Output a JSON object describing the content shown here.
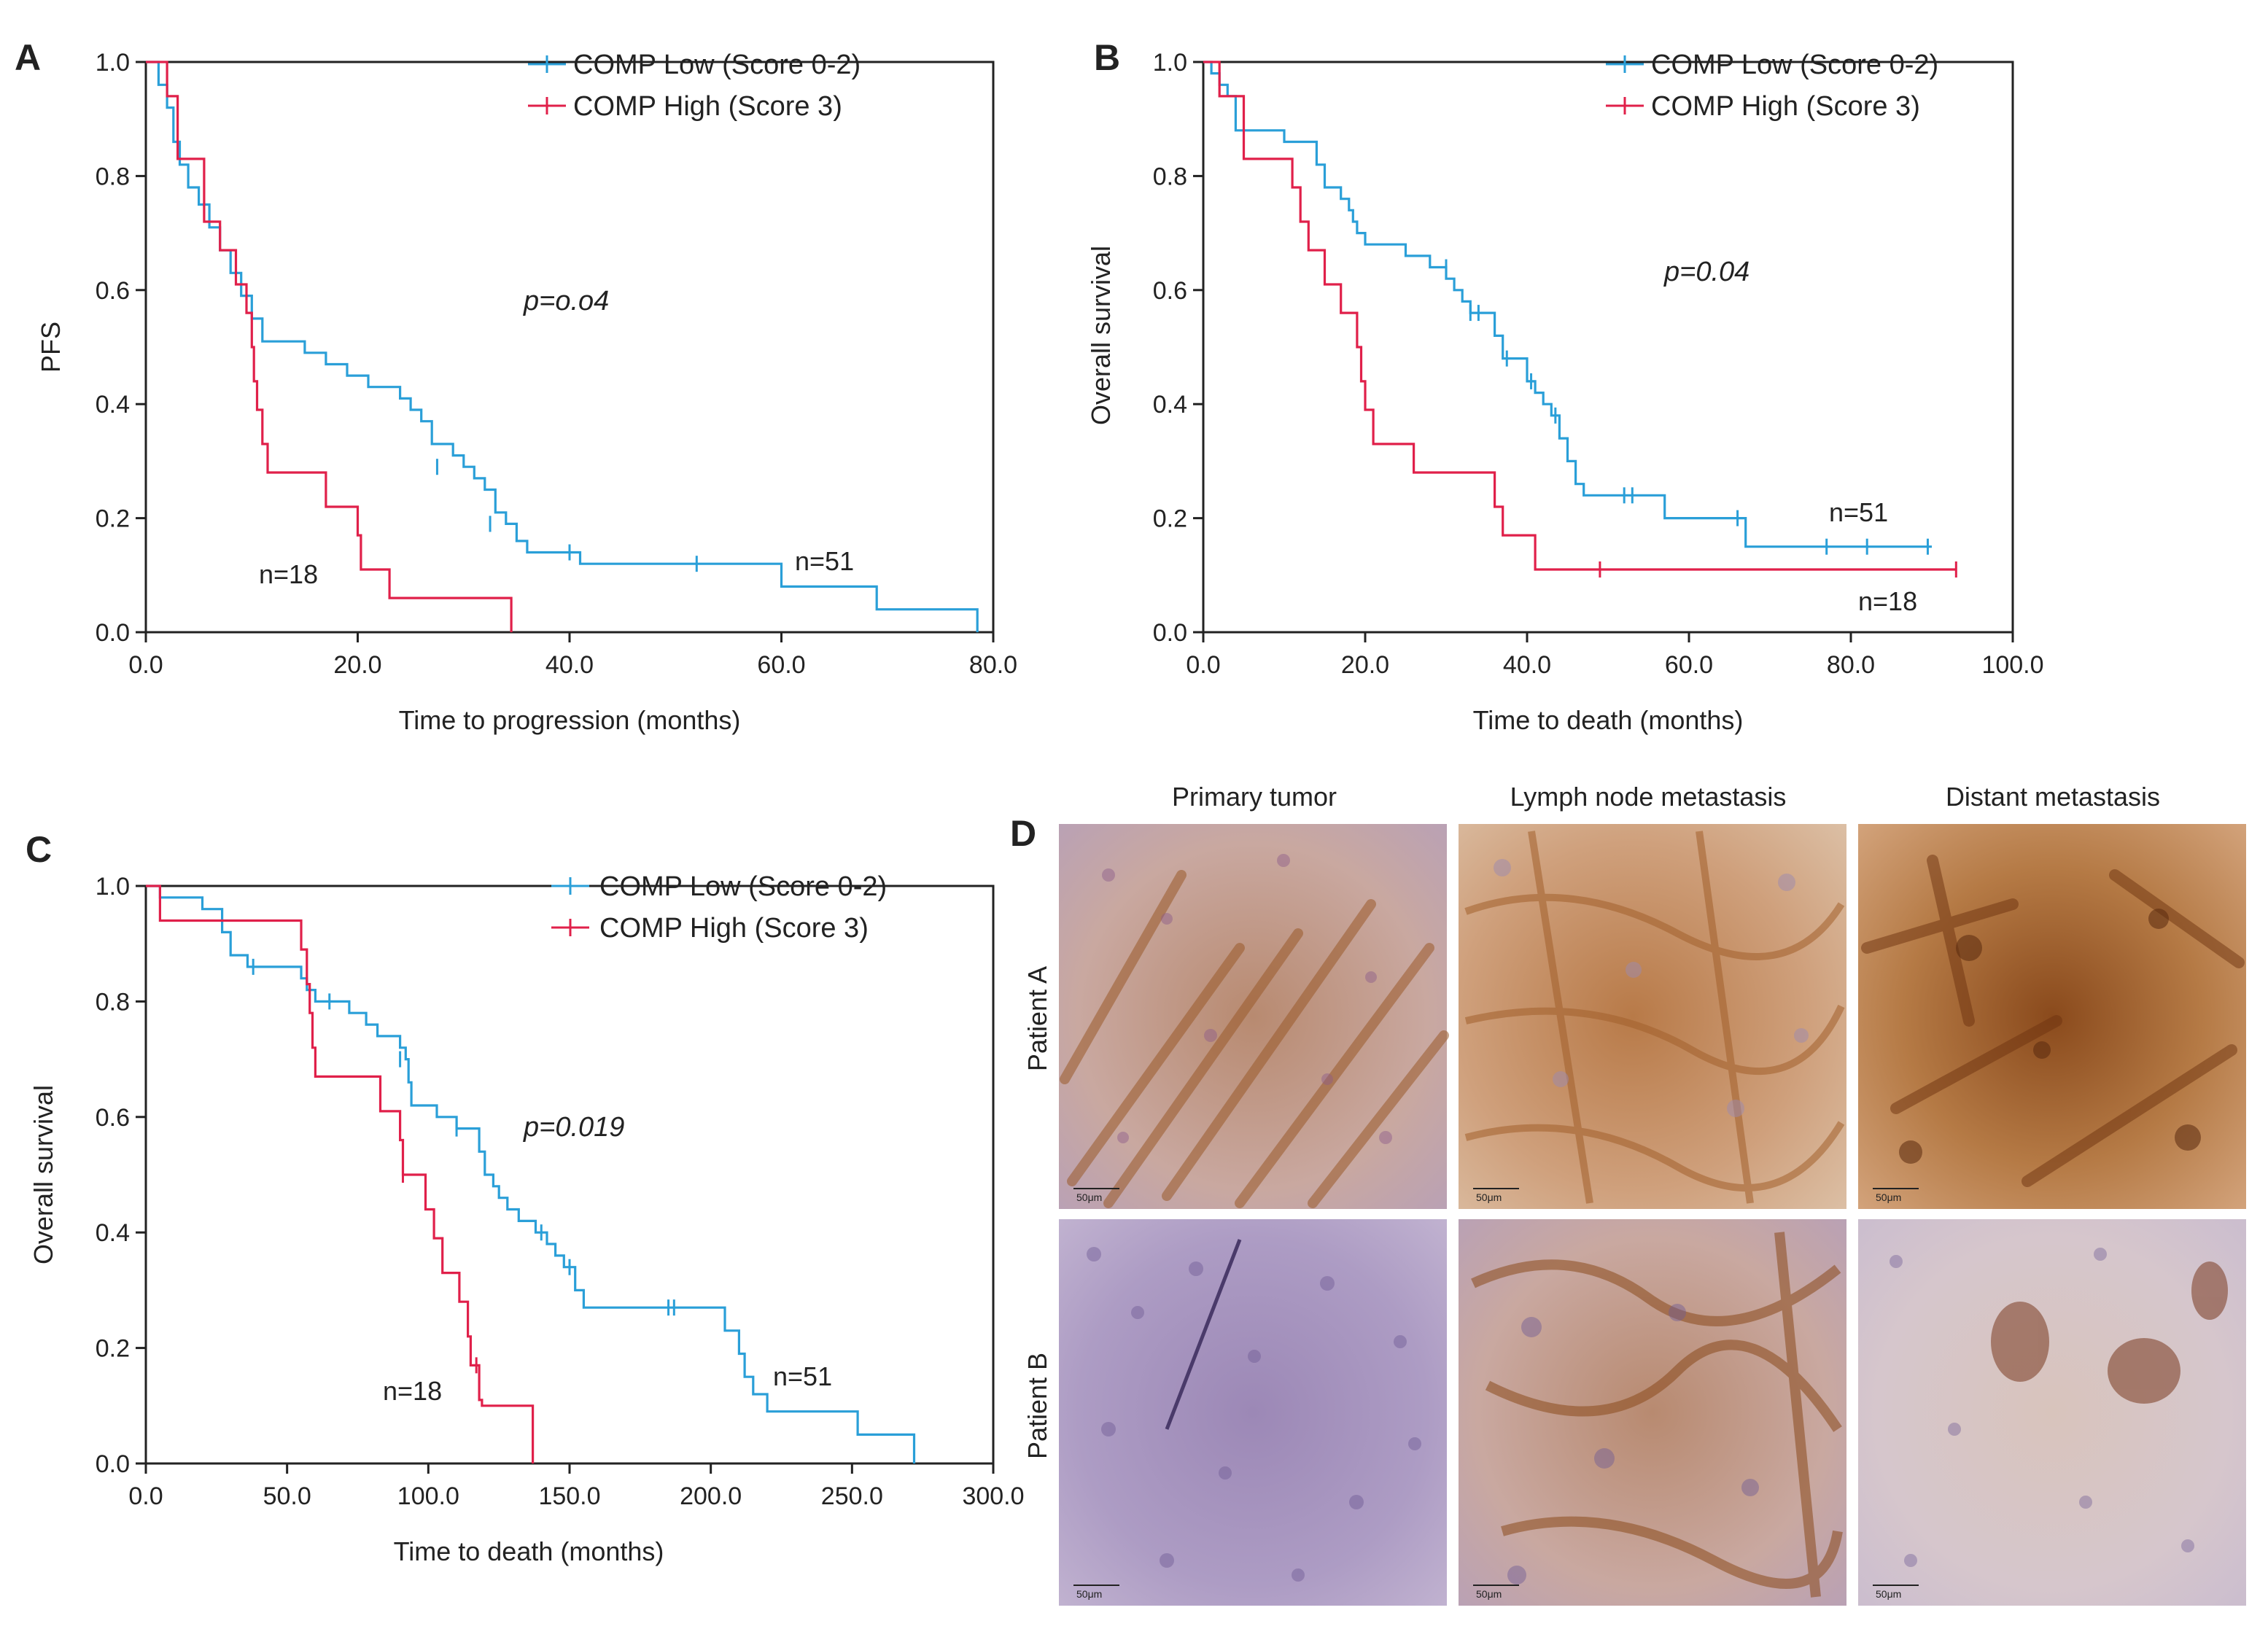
{
  "colors": {
    "low": "#2a9fd8",
    "high": "#e0204a",
    "axis": "#222222"
  },
  "chart_data": [
    {
      "panel": "A",
      "type": "line",
      "subtype": "kaplan-meier",
      "xlabel": "Time to progression  (months)",
      "ylabel": "PFS",
      "xlim": [
        0,
        80
      ],
      "ylim": [
        0,
        1
      ],
      "xticks": [
        "0.0",
        "20.0",
        "40.0",
        "60.0",
        "80.0"
      ],
      "yticks": [
        "0.0",
        "0.2",
        "0.4",
        "0.6",
        "0.8",
        "1.0"
      ],
      "pvalue": "p=o.o4",
      "series": [
        {
          "name": "COMP Low (Score 0-2)",
          "key": "low",
          "n_label": "n=51",
          "points": [
            [
              0,
              1.0
            ],
            [
              1.2,
              0.96
            ],
            [
              2.0,
              0.92
            ],
            [
              2.6,
              0.86
            ],
            [
              3.2,
              0.82
            ],
            [
              4.0,
              0.78
            ],
            [
              5.0,
              0.75
            ],
            [
              6.0,
              0.71
            ],
            [
              7.0,
              0.67
            ],
            [
              8.0,
              0.63
            ],
            [
              9.0,
              0.59
            ],
            [
              10.0,
              0.55
            ],
            [
              11.0,
              0.51
            ],
            [
              15.0,
              0.49
            ],
            [
              17.0,
              0.47
            ],
            [
              19.0,
              0.45
            ],
            [
              21.0,
              0.43
            ],
            [
              24.0,
              0.41
            ],
            [
              25.0,
              0.39
            ],
            [
              26.0,
              0.37
            ],
            [
              27.0,
              0.33
            ],
            [
              29.0,
              0.31
            ],
            [
              30.0,
              0.29
            ],
            [
              31.0,
              0.27
            ],
            [
              32.0,
              0.25
            ],
            [
              33.0,
              0.21
            ],
            [
              34.0,
              0.19
            ],
            [
              35.0,
              0.16
            ],
            [
              36.0,
              0.14
            ],
            [
              41.0,
              0.12
            ],
            [
              60.0,
              0.08
            ],
            [
              69.0,
              0.04
            ],
            [
              78.5,
              0.0
            ]
          ],
          "censors": [
            [
              27.5,
              0.29
            ],
            [
              32.5,
              0.19
            ],
            [
              40.0,
              0.14
            ],
            [
              52.0,
              0.12
            ]
          ]
        },
        {
          "name": "COMP High (Score 3)",
          "key": "high",
          "n_label": "n=18",
          "points": [
            [
              0,
              1.0
            ],
            [
              2.0,
              0.94
            ],
            [
              3.0,
              0.83
            ],
            [
              5.5,
              0.72
            ],
            [
              7.0,
              0.67
            ],
            [
              8.5,
              0.61
            ],
            [
              9.5,
              0.56
            ],
            [
              10.0,
              0.5
            ],
            [
              10.2,
              0.44
            ],
            [
              10.5,
              0.39
            ],
            [
              11.0,
              0.33
            ],
            [
              11.5,
              0.28
            ],
            [
              17.0,
              0.22
            ],
            [
              20.0,
              0.17
            ],
            [
              20.3,
              0.11
            ],
            [
              23.0,
              0.06
            ],
            [
              34.5,
              0.0
            ]
          ],
          "censors": []
        }
      ]
    },
    {
      "panel": "B",
      "type": "line",
      "subtype": "kaplan-meier",
      "xlabel": "Time to death (months)",
      "ylabel": "Overall survival",
      "xlim": [
        0,
        100
      ],
      "ylim": [
        0,
        1
      ],
      "xticks": [
        "0.0",
        "20.0",
        "40.0",
        "60.0",
        "80.0",
        "100.0"
      ],
      "yticks": [
        "0.0",
        "0.2",
        "0.4",
        "0.6",
        "0.8",
        "1.0"
      ],
      "pvalue": "p=0.04",
      "series": [
        {
          "name": "COMP Low (Score 0-2)",
          "key": "low",
          "n_label": "n=51",
          "points": [
            [
              0,
              1.0
            ],
            [
              1,
              0.98
            ],
            [
              2,
              0.96
            ],
            [
              3,
              0.94
            ],
            [
              4,
              0.88
            ],
            [
              10,
              0.86
            ],
            [
              14,
              0.82
            ],
            [
              15,
              0.78
            ],
            [
              17,
              0.76
            ],
            [
              18,
              0.74
            ],
            [
              18.5,
              0.72
            ],
            [
              19,
              0.7
            ],
            [
              20,
              0.68
            ],
            [
              25,
              0.66
            ],
            [
              28,
              0.64
            ],
            [
              30,
              0.62
            ],
            [
              31,
              0.6
            ],
            [
              32,
              0.58
            ],
            [
              33,
              0.56
            ],
            [
              36,
              0.52
            ],
            [
              37,
              0.48
            ],
            [
              40,
              0.44
            ],
            [
              41,
              0.42
            ],
            [
              42,
              0.4
            ],
            [
              43,
              0.38
            ],
            [
              44,
              0.34
            ],
            [
              45,
              0.3
            ],
            [
              46,
              0.26
            ],
            [
              47,
              0.24
            ],
            [
              57,
              0.2
            ],
            [
              67,
              0.16
            ],
            [
              67,
              0.15
            ],
            [
              90,
              0.15
            ]
          ],
          "censors": [
            [
              30,
              0.64
            ],
            [
              33,
              0.56
            ],
            [
              34,
              0.56
            ],
            [
              37.5,
              0.48
            ],
            [
              40.5,
              0.44
            ],
            [
              43.5,
              0.38
            ],
            [
              52,
              0.24
            ],
            [
              53,
              0.24
            ],
            [
              66,
              0.2
            ],
            [
              77,
              0.15
            ],
            [
              82,
              0.15
            ],
            [
              89.5,
              0.15
            ]
          ]
        },
        {
          "name": "COMP High (Score 3)",
          "key": "high",
          "n_label": "n=18",
          "points": [
            [
              0,
              1.0
            ],
            [
              2,
              0.94
            ],
            [
              5,
              0.83
            ],
            [
              11,
              0.78
            ],
            [
              12,
              0.72
            ],
            [
              13,
              0.67
            ],
            [
              15,
              0.61
            ],
            [
              17,
              0.56
            ],
            [
              19,
              0.5
            ],
            [
              19.5,
              0.44
            ],
            [
              20,
              0.39
            ],
            [
              21,
              0.33
            ],
            [
              26,
              0.28
            ],
            [
              36,
              0.22
            ],
            [
              37,
              0.17
            ],
            [
              41,
              0.11
            ],
            [
              93,
              0.11
            ]
          ],
          "censors": [
            [
              49,
              0.11
            ],
            [
              93,
              0.11
            ]
          ]
        }
      ]
    },
    {
      "panel": "C",
      "type": "line",
      "subtype": "kaplan-meier",
      "xlabel": "Time to death (months)",
      "ylabel": "Overall survival",
      "xlim": [
        0,
        300
      ],
      "ylim": [
        0,
        1
      ],
      "xticks": [
        "0.0",
        "50.0",
        "100.0",
        "150.0",
        "200.0",
        "250.0",
        "300.0"
      ],
      "yticks": [
        "0.0",
        "0.2",
        "0.4",
        "0.6",
        "0.8",
        "1.0"
      ],
      "pvalue": "p=0.019",
      "series": [
        {
          "name": "COMP Low (Score 0-2)",
          "key": "low",
          "n_label": "n=51",
          "points": [
            [
              0,
              1.0
            ],
            [
              5,
              0.98
            ],
            [
              20,
              0.96
            ],
            [
              27,
              0.92
            ],
            [
              30,
              0.88
            ],
            [
              36,
              0.86
            ],
            [
              55,
              0.84
            ],
            [
              57,
              0.82
            ],
            [
              60,
              0.8
            ],
            [
              72,
              0.78
            ],
            [
              78,
              0.76
            ],
            [
              82,
              0.74
            ],
            [
              90,
              0.72
            ],
            [
              92,
              0.7
            ],
            [
              93,
              0.66
            ],
            [
              94,
              0.62
            ],
            [
              103,
              0.6
            ],
            [
              110,
              0.58
            ],
            [
              118,
              0.54
            ],
            [
              120,
              0.5
            ],
            [
              123,
              0.48
            ],
            [
              125,
              0.46
            ],
            [
              128,
              0.44
            ],
            [
              132,
              0.42
            ],
            [
              138,
              0.4
            ],
            [
              142,
              0.38
            ],
            [
              145,
              0.36
            ],
            [
              148,
              0.34
            ],
            [
              152,
              0.3
            ],
            [
              155,
              0.27
            ],
            [
              205,
              0.23
            ],
            [
              210,
              0.19
            ],
            [
              212,
              0.15
            ],
            [
              215,
              0.12
            ],
            [
              220,
              0.09
            ],
            [
              252,
              0.05
            ],
            [
              272,
              0.0
            ]
          ],
          "censors": [
            [
              38,
              0.86
            ],
            [
              65,
              0.8
            ],
            [
              90,
              0.7
            ],
            [
              110,
              0.58
            ],
            [
              140,
              0.4
            ],
            [
              150,
              0.34
            ],
            [
              185,
              0.27
            ],
            [
              187,
              0.27
            ]
          ]
        },
        {
          "name": "COMP High (Score 3)",
          "key": "high",
          "n_label": "n=18",
          "points": [
            [
              0,
              1.0
            ],
            [
              5,
              0.94
            ],
            [
              55,
              0.89
            ],
            [
              57,
              0.83
            ],
            [
              58,
              0.78
            ],
            [
              59,
              0.72
            ],
            [
              60,
              0.67
            ],
            [
              83,
              0.61
            ],
            [
              90,
              0.56
            ],
            [
              91,
              0.5
            ],
            [
              99,
              0.44
            ],
            [
              102,
              0.39
            ],
            [
              105,
              0.33
            ],
            [
              111,
              0.28
            ],
            [
              114,
              0.22
            ],
            [
              115,
              0.17
            ],
            [
              118,
              0.11
            ],
            [
              119,
              0.1
            ],
            [
              137,
              0.0
            ]
          ],
          "censors": [
            [
              91,
              0.5
            ],
            [
              117,
              0.17
            ]
          ]
        }
      ]
    }
  ],
  "legend_labels": [
    "COMP Low (Score 0-2)",
    "COMP High (Score 3)"
  ],
  "panel_letters": {
    "a": "A",
    "b": "B",
    "c": "C",
    "d": "D"
  },
  "histology": {
    "columns": [
      "Primary tumor",
      "Lymph node metastasis",
      "Distant metastasis"
    ],
    "rows": [
      "Patient A",
      "Patient B"
    ],
    "scale_bar": "50μm"
  }
}
